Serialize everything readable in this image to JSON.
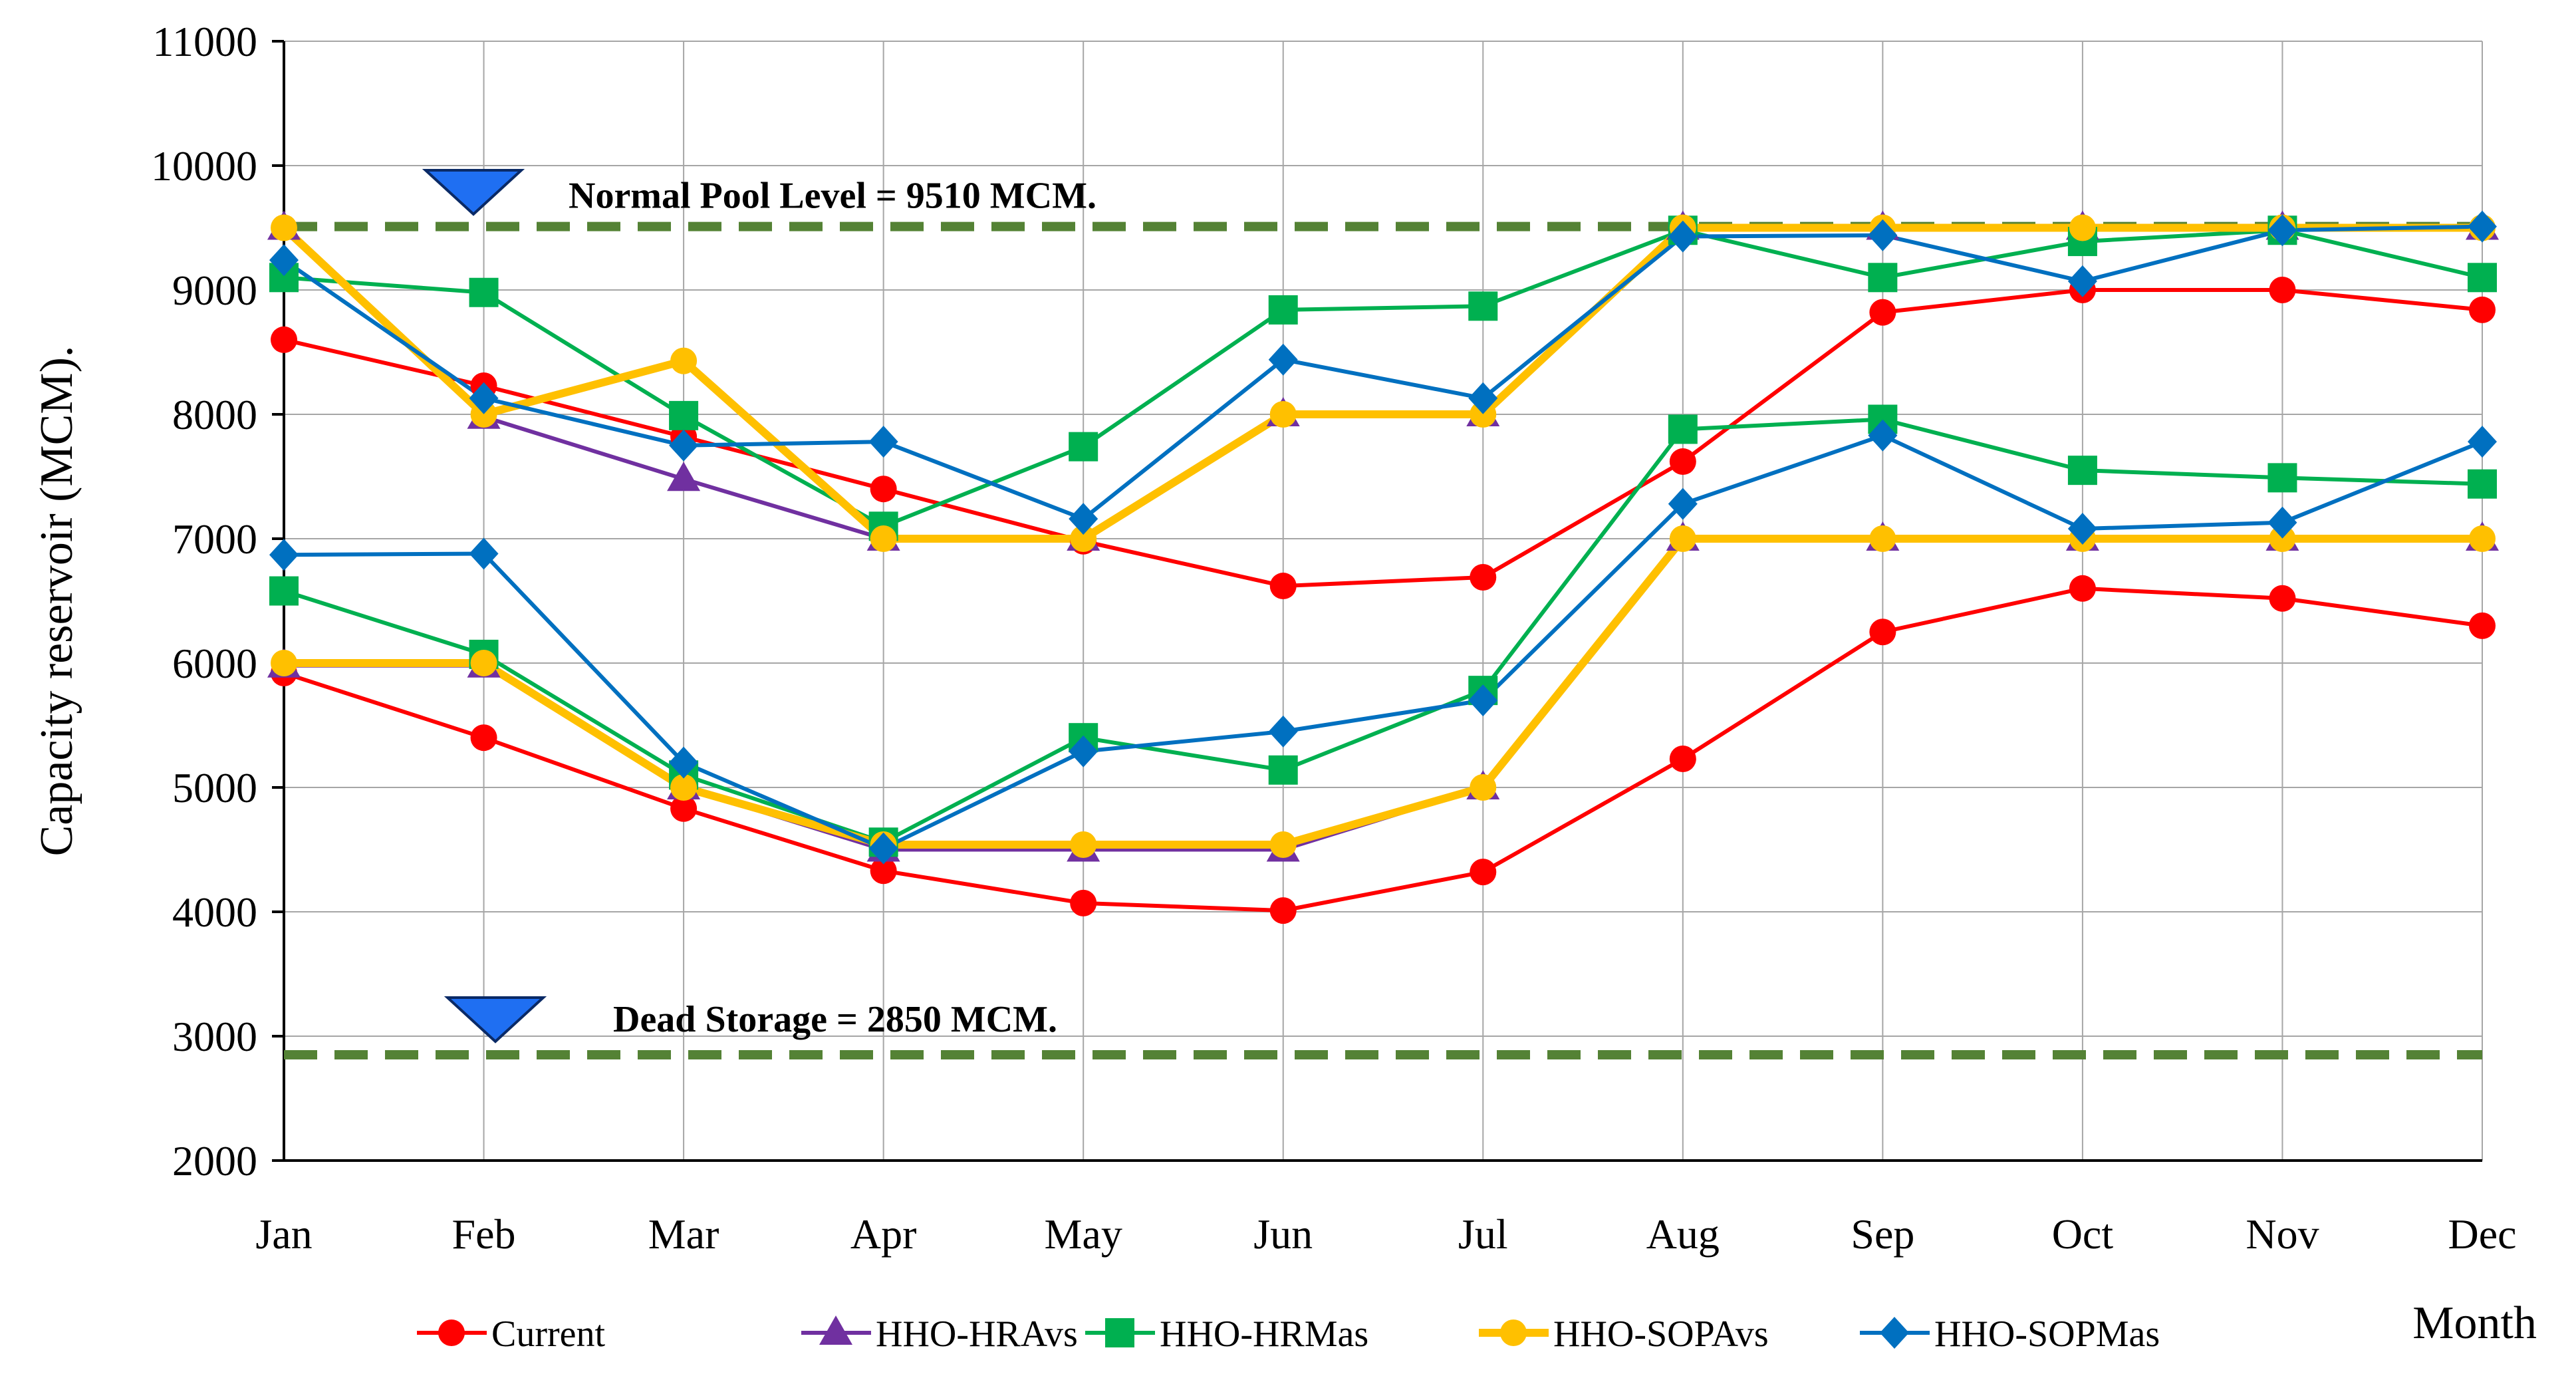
{
  "chart_data": {
    "type": "line",
    "title": "",
    "xlabel": "Month",
    "ylabel": "Capacity reservoir (MCM).",
    "ylim": [
      2000,
      11000
    ],
    "yticks": [
      2000,
      3000,
      4000,
      5000,
      6000,
      7000,
      8000,
      9000,
      10000,
      11000
    ],
    "grid": true,
    "legend_position": "bottom",
    "categories": [
      "Jan",
      "Feb",
      "Mar",
      "Apr",
      "May",
      "Jun",
      "Jul",
      "Aug",
      "Sep",
      "Oct",
      "Nov",
      "Dec"
    ],
    "reference_lines": [
      {
        "name": "normal-pool-level",
        "label": "Normal Pool Level = 9510  MCM.",
        "value": 9510,
        "color": "#548235"
      },
      {
        "name": "dead-storage",
        "label": "Dead Storage = 2850 MCM.",
        "value": 2850,
        "color": "#548235"
      }
    ],
    "series": [
      {
        "name": "Current",
        "color": "#ff0000",
        "marker": "circle",
        "upper": [
          8600,
          8230,
          7820,
          7400,
          6980,
          6620,
          6690,
          7620,
          8820,
          9000,
          9000,
          8840
        ],
        "lower": [
          5920,
          5400,
          4830,
          4330,
          4070,
          4010,
          4320,
          5230,
          6250,
          6600,
          6520,
          6300
        ]
      },
      {
        "name": "HHO-HRAvs",
        "color": "#7030a0",
        "marker": "triangle",
        "upper": [
          9500,
          7980,
          7480,
          7000,
          7000,
          8000,
          8000,
          9500,
          9500,
          9500,
          9500,
          9500
        ],
        "lower": [
          5980,
          5980,
          5000,
          4500,
          4500,
          4500,
          5000,
          7000,
          7000,
          7000,
          7000,
          7000
        ]
      },
      {
        "name": "HHO-HRMas",
        "color": "#00b050",
        "marker": "square",
        "upper": [
          9100,
          8980,
          7990,
          7100,
          7740,
          8840,
          8870,
          9480,
          9100,
          9390,
          9480,
          9100
        ],
        "lower": [
          6580,
          6070,
          5100,
          4560,
          5400,
          5140,
          5780,
          7880,
          7960,
          7550,
          7490,
          7440
        ]
      },
      {
        "name": "HHO-SOPAvs",
        "color": "#ffc000",
        "marker": "circle",
        "upper": [
          9500,
          8000,
          8430,
          7000,
          7000,
          8000,
          8000,
          9500,
          9500,
          9500,
          9500,
          9500
        ],
        "lower": [
          6000,
          6000,
          5000,
          4540,
          4540,
          4540,
          5000,
          7000,
          7000,
          7000,
          7000,
          7000
        ]
      },
      {
        "name": "HHO-SOPMas",
        "color": "#0070c0",
        "marker": "diamond",
        "upper": [
          9240,
          8130,
          7750,
          7780,
          7160,
          8440,
          8130,
          9430,
          9440,
          9070,
          9480,
          9510
        ],
        "lower": [
          6870,
          6880,
          5200,
          4510,
          5290,
          5450,
          5700,
          7280,
          7830,
          7080,
          7130,
          7780
        ]
      }
    ]
  }
}
